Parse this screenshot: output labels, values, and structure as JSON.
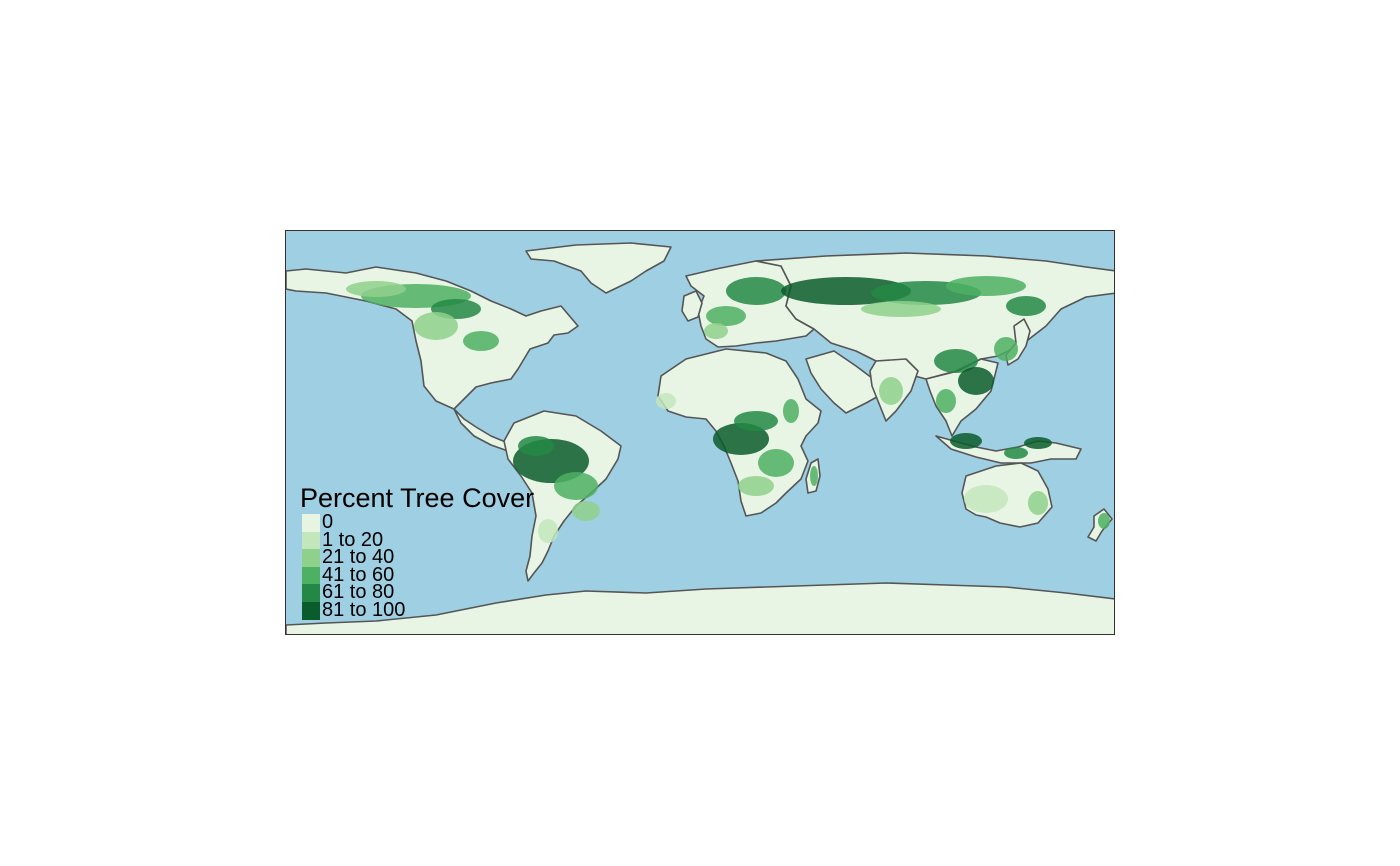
{
  "map": {
    "projection": "equirectangular",
    "ocean_color": "#9ecfe2",
    "land_base_color": "#e8f5e4",
    "border_color": "#555555",
    "regions": [
      {
        "name": "north-america"
      },
      {
        "name": "greenland"
      },
      {
        "name": "central-america"
      },
      {
        "name": "south-america"
      },
      {
        "name": "europe"
      },
      {
        "name": "africa"
      },
      {
        "name": "asia"
      },
      {
        "name": "arabia"
      },
      {
        "name": "india"
      },
      {
        "name": "southeast-asia"
      },
      {
        "name": "indonesia"
      },
      {
        "name": "japan"
      },
      {
        "name": "australia"
      },
      {
        "name": "new-zealand"
      },
      {
        "name": "madagascar"
      },
      {
        "name": "uk-ireland"
      },
      {
        "name": "antarctica"
      }
    ]
  },
  "legend": {
    "title": "Percent Tree Cover",
    "position": "bottom-left",
    "items": [
      {
        "label": "0",
        "color": "#e6f4e1"
      },
      {
        "label": "1 to 20",
        "color": "#c3e6bd"
      },
      {
        "label": "21 to 40",
        "color": "#8fd08c"
      },
      {
        "label": "41 to 60",
        "color": "#4eb063"
      },
      {
        "label": "61 to 80",
        "color": "#238845"
      },
      {
        "label": "81 to 100",
        "color": "#0a5c2c"
      }
    ]
  }
}
